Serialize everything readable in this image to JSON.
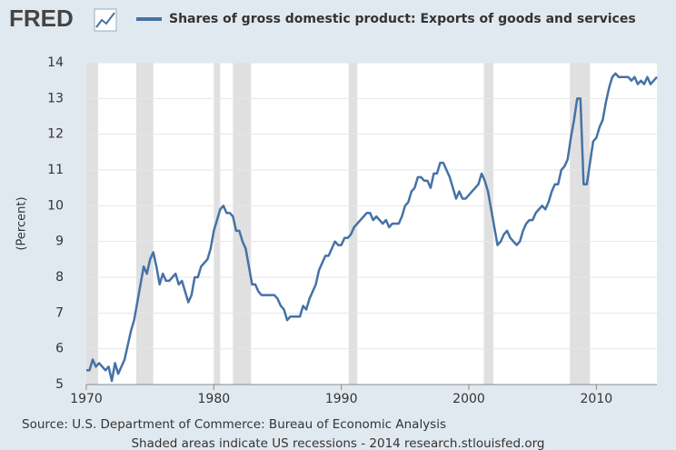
{
  "logo": "FRED",
  "chart_data": {
    "type": "line",
    "y_label": "(Percent)",
    "source": "Source: U.S. Department of Commerce: Bureau of Economic Analysis",
    "note": "Shaded areas indicate US recessions - 2014 research.stlouisfed.org",
    "xlim": [
      1970,
      2014.75
    ],
    "xticks": [
      1970,
      1980,
      1990,
      2000,
      2010
    ],
    "ylim": [
      5,
      14
    ],
    "yticks": [
      5,
      6,
      7,
      8,
      9,
      10,
      11,
      12,
      13,
      14
    ],
    "grid": true,
    "recession_color": "#e0e0e0",
    "recessions": [
      [
        1969.92,
        1970.92
      ],
      [
        1973.92,
        1975.25
      ],
      [
        1980.0,
        1980.5
      ],
      [
        1981.5,
        1982.92
      ],
      [
        1990.58,
        1991.25
      ],
      [
        2001.17,
        2001.92
      ],
      [
        2007.92,
        2009.5
      ]
    ],
    "x": [
      1970,
      1970.25,
      1970.5,
      1970.75,
      1971,
      1971.25,
      1971.5,
      1971.75,
      1972,
      1972.25,
      1972.5,
      1972.75,
      1973,
      1973.25,
      1973.5,
      1973.75,
      1974,
      1974.25,
      1974.5,
      1974.75,
      1975,
      1975.25,
      1975.5,
      1975.75,
      1976,
      1976.25,
      1976.5,
      1976.75,
      1977,
      1977.25,
      1977.5,
      1977.75,
      1978,
      1978.25,
      1978.5,
      1978.75,
      1979,
      1979.25,
      1979.5,
      1979.75,
      1980,
      1980.25,
      1980.5,
      1980.75,
      1981,
      1981.25,
      1981.5,
      1981.75,
      1982,
      1982.25,
      1982.5,
      1982.75,
      1983,
      1983.25,
      1983.5,
      1983.75,
      1984,
      1984.25,
      1984.5,
      1984.75,
      1985,
      1985.25,
      1985.5,
      1985.75,
      1986,
      1986.25,
      1986.5,
      1986.75,
      1987,
      1987.25,
      1987.5,
      1987.75,
      1988,
      1988.25,
      1988.5,
      1988.75,
      1989,
      1989.25,
      1989.5,
      1989.75,
      1990,
      1990.25,
      1990.5,
      1990.75,
      1991,
      1991.25,
      1991.5,
      1991.75,
      1992,
      1992.25,
      1992.5,
      1992.75,
      1993,
      1993.25,
      1993.5,
      1993.75,
      1994,
      1994.25,
      1994.5,
      1994.75,
      1995,
      1995.25,
      1995.5,
      1995.75,
      1996,
      1996.25,
      1996.5,
      1996.75,
      1997,
      1997.25,
      1997.5,
      1997.75,
      1998,
      1998.25,
      1998.5,
      1998.75,
      1999,
      1999.25,
      1999.5,
      1999.75,
      2000,
      2000.25,
      2000.5,
      2000.75,
      2001,
      2001.25,
      2001.5,
      2001.75,
      2002,
      2002.25,
      2002.5,
      2002.75,
      2003,
      2003.25,
      2003.5,
      2003.75,
      2004,
      2004.25,
      2004.5,
      2004.75,
      2005,
      2005.25,
      2005.5,
      2005.75,
      2006,
      2006.25,
      2006.5,
      2006.75,
      2007,
      2007.25,
      2007.5,
      2007.75,
      2008,
      2008.25,
      2008.5,
      2008.75,
      2009,
      2009.25,
      2009.5,
      2009.75,
      2010,
      2010.25,
      2010.5,
      2010.75,
      2011,
      2011.25,
      2011.5,
      2011.75,
      2012,
      2012.25,
      2012.5,
      2012.75,
      2013,
      2013.25,
      2013.5,
      2013.75,
      2014,
      2014.25,
      2014.5,
      2014.75
    ],
    "series": [
      {
        "name": "Shares of gross domestic product: Exports of goods and services",
        "color": "#4572a7",
        "values": [
          5.4,
          5.4,
          5.7,
          5.5,
          5.6,
          5.5,
          5.4,
          5.5,
          5.1,
          5.6,
          5.3,
          5.5,
          5.7,
          6.1,
          6.5,
          6.8,
          7.3,
          7.8,
          8.3,
          8.1,
          8.5,
          8.7,
          8.3,
          7.8,
          8.1,
          7.9,
          7.9,
          8.0,
          8.1,
          7.8,
          7.9,
          7.6,
          7.3,
          7.5,
          8.0,
          8.0,
          8.3,
          8.4,
          8.5,
          8.8,
          9.3,
          9.6,
          9.9,
          10.0,
          9.8,
          9.8,
          9.7,
          9.3,
          9.3,
          9.0,
          8.8,
          8.3,
          7.8,
          7.8,
          7.6,
          7.5,
          7.5,
          7.5,
          7.5,
          7.5,
          7.4,
          7.2,
          7.1,
          6.8,
          6.9,
          6.9,
          6.9,
          6.9,
          7.2,
          7.1,
          7.4,
          7.6,
          7.8,
          8.2,
          8.4,
          8.6,
          8.6,
          8.8,
          9.0,
          8.9,
          8.9,
          9.1,
          9.1,
          9.2,
          9.4,
          9.5,
          9.6,
          9.7,
          9.8,
          9.8,
          9.6,
          9.7,
          9.6,
          9.5,
          9.6,
          9.4,
          9.5,
          9.5,
          9.5,
          9.7,
          10.0,
          10.1,
          10.4,
          10.5,
          10.8,
          10.8,
          10.7,
          10.7,
          10.5,
          10.9,
          10.9,
          11.2,
          11.2,
          11.0,
          10.8,
          10.5,
          10.2,
          10.4,
          10.2,
          10.2,
          10.3,
          10.4,
          10.5,
          10.6,
          10.9,
          10.7,
          10.4,
          9.9,
          9.4,
          8.9,
          9.0,
          9.2,
          9.3,
          9.1,
          9.0,
          8.9,
          9.0,
          9.3,
          9.5,
          9.6,
          9.6,
          9.8,
          9.9,
          10.0,
          9.9,
          10.1,
          10.4,
          10.6,
          10.6,
          11.0,
          11.1,
          11.3,
          11.9,
          12.4,
          13.0,
          13.0,
          10.6,
          10.6,
          11.2,
          11.8,
          11.9,
          12.2,
          12.4,
          12.9,
          13.3,
          13.6,
          13.7,
          13.6,
          13.6,
          13.6,
          13.6,
          13.5,
          13.6,
          13.4,
          13.5,
          13.4,
          13.6,
          13.4,
          13.5,
          13.6
        ]
      }
    ]
  }
}
